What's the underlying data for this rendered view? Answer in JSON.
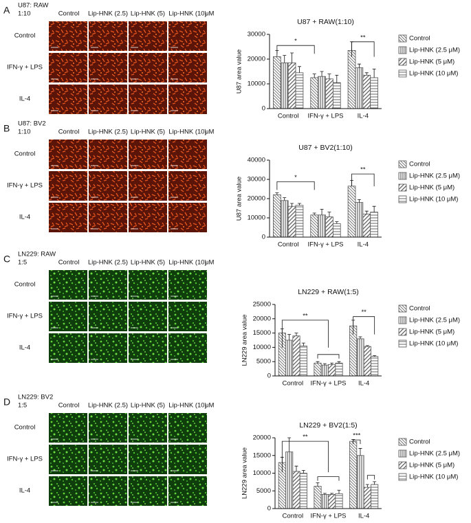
{
  "panels": [
    {
      "letter": "A",
      "cell": [
        "U87: RAW",
        "1:10"
      ],
      "columns": [
        "Control",
        "Lip-HNK (2.5)",
        "Lip-HNK (5)",
        "Lip-HNK (10)",
        "μM"
      ],
      "rows": [
        "Control",
        "IFN-γ + LPS",
        "IL-4"
      ]
    },
    {
      "letter": "B",
      "cell": [
        "U87: BV2",
        "1:10"
      ],
      "columns": [
        "Control",
        "Lip-HNK (2.5)",
        "Lip-HNK (5)",
        "Lip-HNK (10)",
        "μM"
      ],
      "rows": [
        "Control",
        "IFN-γ + LPS",
        "IL-4"
      ]
    },
    {
      "letter": "C",
      "cell": [
        "LN229: RAW",
        "1:5"
      ],
      "columns": [
        "Control",
        "Lip-HNK (2.5)",
        "Lip-HNK (5)",
        "Lip-HNK (10)",
        "μM"
      ],
      "rows": [
        "Control",
        "IFN-γ + LPS",
        "IL-4"
      ]
    },
    {
      "letter": "D",
      "cell": [
        "LN229: BV2",
        "1:5"
      ],
      "columns": [
        "Control",
        "Lip-HNK (2.5)",
        "Lip-HNK (5)",
        "Lip-HNK (10)",
        "μM"
      ],
      "rows": [
        "Control",
        "IFN-γ + LPS",
        "IL-4"
      ]
    }
  ],
  "chart_data": [
    {
      "type": "bar",
      "title": "U87 + RAW(1:10)",
      "y_label": "U87 area value",
      "categories": [
        "Control",
        "IFN-γ + LPS",
        "IL-4"
      ],
      "series": [
        {
          "name": "Control",
          "color": "#555555",
          "values": [
            21000,
            12500,
            23500
          ],
          "errors": [
            2500,
            1500,
            3500
          ]
        },
        {
          "name": "Lip-HNK (2.5 μM)",
          "color": "#555555",
          "values": [
            18500,
            13000,
            16500
          ],
          "errors": [
            3000,
            2000,
            1500
          ]
        },
        {
          "name": "Lip-HNK (5 μM)",
          "color": "#555555",
          "values": [
            18500,
            12000,
            13500
          ],
          "errors": [
            4000,
            2000,
            1000
          ]
        },
        {
          "name": "Lip-HNK (10 μM)",
          "color": "#555555",
          "values": [
            14500,
            10500,
            12500
          ],
          "errors": [
            2500,
            3000,
            3500
          ]
        }
      ],
      "ylim": [
        0,
        30000
      ],
      "yticks": [
        0,
        10000,
        20000,
        30000
      ],
      "annotations": [
        {
          "text": "*"
        },
        {
          "text": "**"
        }
      ]
    },
    {
      "type": "bar",
      "title": "U87 + BV2(1:10)",
      "y_label": "U87 area value",
      "categories": [
        "Control",
        "IFN-γ + LPS",
        "IL-4"
      ],
      "series": [
        {
          "name": "Control",
          "color": "#555555",
          "values": [
            22000,
            11500,
            26500
          ],
          "errors": [
            1000,
            1000,
            3000
          ]
        },
        {
          "name": "Lip-HNK (2.5 μM)",
          "color": "#555555",
          "values": [
            19000,
            11500,
            18000
          ],
          "errors": [
            1500,
            3000,
            1500
          ]
        },
        {
          "name": "Lip-HNK (5 μM)",
          "color": "#555555",
          "values": [
            16000,
            10500,
            12000
          ],
          "errors": [
            1500,
            2500,
            1500
          ]
        },
        {
          "name": "Lip-HNK (10 μM)",
          "color": "#555555",
          "values": [
            16500,
            7000,
            13000
          ],
          "errors": [
            1000,
            1000,
            3000
          ]
        }
      ],
      "ylim": [
        0,
        40000
      ],
      "yticks": [
        0,
        10000,
        20000,
        30000,
        40000
      ],
      "annotations": [
        {
          "text": "*"
        },
        {
          "text": "**"
        }
      ]
    },
    {
      "type": "bar",
      "title": "LN229 + RAW(1:5)",
      "y_label": "LN229 area value",
      "categories": [
        "Control",
        "IFN-γ + LPS",
        "IL-4"
      ],
      "series": [
        {
          "name": "Control",
          "color": "#555555",
          "values": [
            15000,
            4500,
            17500
          ],
          "errors": [
            1500,
            500,
            2000
          ]
        },
        {
          "name": "Lip-HNK (2.5 μM)",
          "color": "#555555",
          "values": [
            12500,
            3800,
            13000
          ],
          "errors": [
            2000,
            500,
            700
          ]
        },
        {
          "name": "Lip-HNK (5 μM)",
          "color": "#555555",
          "values": [
            14000,
            4000,
            10300
          ],
          "errors": [
            1000,
            500,
            300
          ]
        },
        {
          "name": "Lip-HNK (10 μM)",
          "color": "#555555",
          "values": [
            10500,
            4500,
            6800
          ],
          "errors": [
            1000,
            500,
            300
          ]
        }
      ],
      "ylim": [
        0,
        25000
      ],
      "yticks": [
        0,
        5000,
        10000,
        15000,
        20000,
        25000
      ],
      "annotations": [
        {
          "text": "**"
        },
        {
          "text": "**"
        }
      ]
    },
    {
      "type": "bar",
      "title": "LN229 + BV2(1:5)",
      "y_label": "LN229 area value",
      "categories": [
        "Control",
        "IFN-γ + LPS",
        "IL-4"
      ],
      "series": [
        {
          "name": "Control",
          "color": "#555555",
          "values": [
            13000,
            6300,
            19000
          ],
          "errors": [
            1500,
            1000,
            500
          ]
        },
        {
          "name": "Lip-HNK (2.5 μM)",
          "color": "#555555",
          "values": [
            16000,
            4000,
            15000
          ],
          "errors": [
            4000,
            300,
            2000
          ]
        },
        {
          "name": "Lip-HNK (5 μM)",
          "color": "#555555",
          "values": [
            10500,
            4000,
            6000
          ],
          "errors": [
            1500,
            300,
            800
          ]
        },
        {
          "name": "Lip-HNK (10 μM)",
          "color": "#555555",
          "values": [
            10000,
            4200,
            6800
          ],
          "errors": [
            800,
            1000,
            800
          ]
        }
      ],
      "ylim": [
        0,
        20000
      ],
      "yticks": [
        0,
        5000,
        10000,
        15000,
        20000
      ],
      "annotations": [
        {
          "text": "**"
        },
        {
          "text": "***"
        }
      ]
    }
  ]
}
